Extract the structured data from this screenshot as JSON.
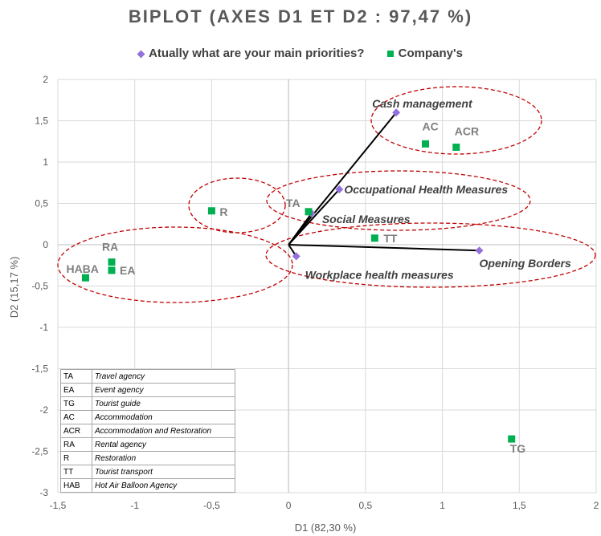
{
  "chart_data": {
    "type": "scatter",
    "title": "BIPLOT (AXES D1 ET D2 : 97,47 %)",
    "xlabel": "D1 (82,30 %)",
    "ylabel": "D2 (15,17 %)",
    "xlim": [
      -1.5,
      2
    ],
    "ylim": [
      -3,
      2
    ],
    "x_ticks": [
      "-1,5",
      "-1",
      "-0,5",
      "0",
      "0,5",
      "1",
      "1,5",
      "2"
    ],
    "y_ticks": [
      "2",
      "1,5",
      "1",
      "0,5",
      "0",
      "-0,5",
      "-1",
      "-1,5",
      "-2",
      "-2,5",
      "-3"
    ],
    "grid": "vertical-and-horizontal",
    "legend_position": "top",
    "series": [
      {
        "name": "Atually what are your main priorities?",
        "marker": "diamond",
        "color": "#9370DB",
        "points": [
          {
            "label": "Cash management",
            "x": 0.7,
            "y": 1.6
          },
          {
            "label": "Occupational Health Measures",
            "x": 0.33,
            "y": 0.67
          },
          {
            "label": "Social Measures",
            "x": 0.15,
            "y": 0.38
          },
          {
            "label": "Opening Borders",
            "x": 1.24,
            "y": -0.07
          },
          {
            "label": "Workplace health measures",
            "x": 0.05,
            "y": -0.14
          }
        ]
      },
      {
        "name": "Company's",
        "marker": "square",
        "color": "#00B050",
        "points": [
          {
            "label": "AC",
            "x": 0.89,
            "y": 1.22
          },
          {
            "label": "ACR",
            "x": 1.09,
            "y": 1.18
          },
          {
            "label": "TA",
            "x": 0.13,
            "y": 0.4
          },
          {
            "label": "R",
            "x": -0.5,
            "y": 0.41
          },
          {
            "label": "TT",
            "x": 0.56,
            "y": 0.08
          },
          {
            "label": "RA",
            "x": -1.15,
            "y": -0.21
          },
          {
            "label": "EA",
            "x": -1.15,
            "y": -0.31
          },
          {
            "label": "HABA",
            "x": -1.32,
            "y": -0.4
          },
          {
            "label": "TG",
            "x": 1.45,
            "y": -2.35
          }
        ]
      }
    ],
    "abbreviations": [
      {
        "code": "TA",
        "desc": "Travel agency"
      },
      {
        "code": "EA",
        "desc": "Event agency"
      },
      {
        "code": "TG",
        "desc": "Tourist guide"
      },
      {
        "code": "AC",
        "desc": "Accommodation"
      },
      {
        "code": "ACR",
        "desc": "Accommodation and Restoration"
      },
      {
        "code": "RA",
        "desc": "Rental agency"
      },
      {
        "code": "R",
        "desc": "Restoration"
      },
      {
        "code": "TT",
        "desc": "Tourist transport"
      },
      {
        "code": "HAB",
        "desc": "Hot Air Balloon Agency"
      }
    ]
  }
}
